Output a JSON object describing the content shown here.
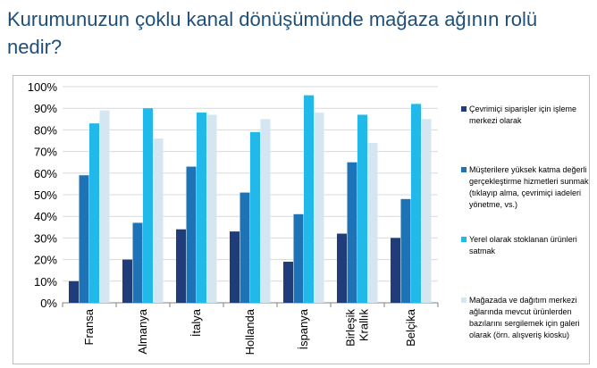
{
  "title": "Kurumunuzun çoklu kanal dönüşümünde mağaza ağının rolü nedir?",
  "chart_data": {
    "type": "bar",
    "categories": [
      "Fransa",
      "Almanya",
      "İtalya",
      "Hollanda",
      "İspanya",
      "Birleşik Krallık",
      "Belçika"
    ],
    "category_lines": [
      [
        "Fransa"
      ],
      [
        "Almanya"
      ],
      [
        "İtalya"
      ],
      [
        "Hollanda"
      ],
      [
        "İspanya"
      ],
      [
        "Birleşik",
        "Krallık"
      ],
      [
        "Belçika"
      ]
    ],
    "series": [
      {
        "name": "Çevrimiçi siparişler için işleme merkezi olarak",
        "color": "#1f3d7a",
        "values": [
          10,
          20,
          34,
          33,
          19,
          32,
          30
        ]
      },
      {
        "name": "Müşterilere yüksek katma değerli gerçekleştirme hizmetleri sunmak (tıklayıp alma, çevrimiçi iadeleri yönetme, vs.)",
        "color": "#1e73b6",
        "values": [
          59,
          37,
          63,
          51,
          41,
          65,
          48
        ]
      },
      {
        "name": "Yerel olarak stoklanan ürünleri satmak",
        "color": "#21b9e9",
        "values": [
          83,
          90,
          88,
          79,
          96,
          87,
          92
        ]
      },
      {
        "name": "Mağazada ve dağıtım merkezi ağlarında mevcut ürünlerden bazılarını sergilemek için galeri olarak (örn. alışveriş kiosku)",
        "color": "#d5e6f3",
        "values": [
          89,
          76,
          87,
          85,
          88,
          74,
          85
        ]
      }
    ],
    "ylim": [
      0,
      100
    ],
    "yticks": [
      "0%",
      "10%",
      "20%",
      "30%",
      "40%",
      "50%",
      "60%",
      "70%",
      "80%",
      "90%",
      "100%"
    ],
    "grid": true,
    "legend_position": "right"
  }
}
